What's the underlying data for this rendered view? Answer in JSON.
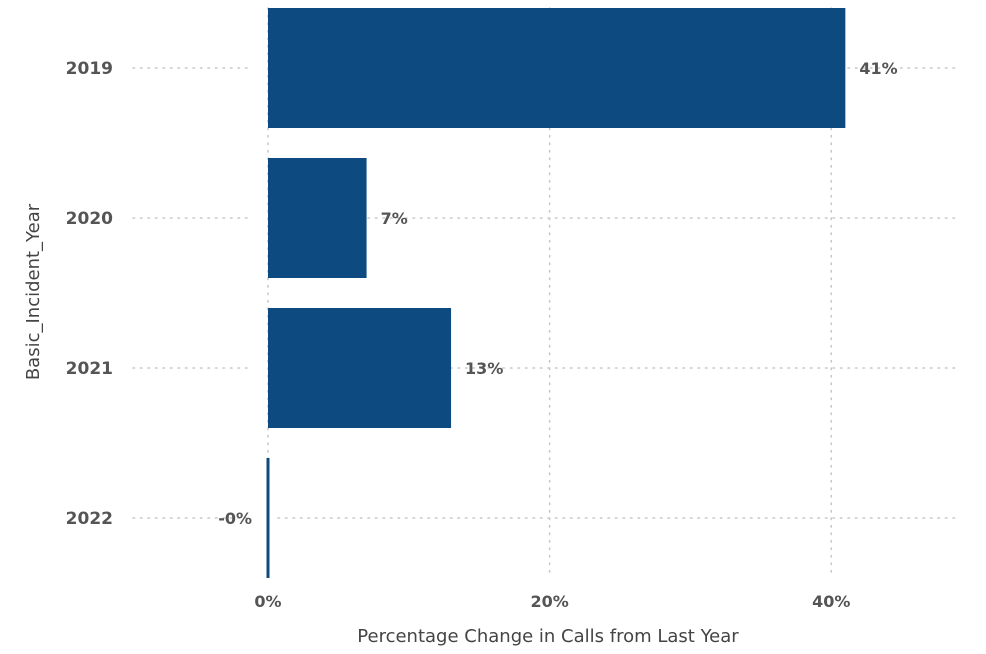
{
  "chart_data": {
    "type": "bar",
    "orientation": "horizontal",
    "categories": [
      "2019",
      "2020",
      "2021",
      "2022"
    ],
    "values": [
      41,
      7,
      13,
      -0.1
    ],
    "data_labels": [
      "41%",
      "7%",
      "13%",
      "-0%"
    ],
    "xlabel": "Percentage Change in Calls from Last Year",
    "ylabel": "Basic_Incident_Year",
    "x_ticks": [
      0,
      20,
      40
    ],
    "x_tick_labels": [
      "0%",
      "20%",
      "40%"
    ],
    "xlim": [
      0,
      49
    ],
    "grid": true,
    "colors": {
      "bar": "#0d4a80",
      "grid": "#c8c8c8",
      "text": "#555555"
    }
  }
}
